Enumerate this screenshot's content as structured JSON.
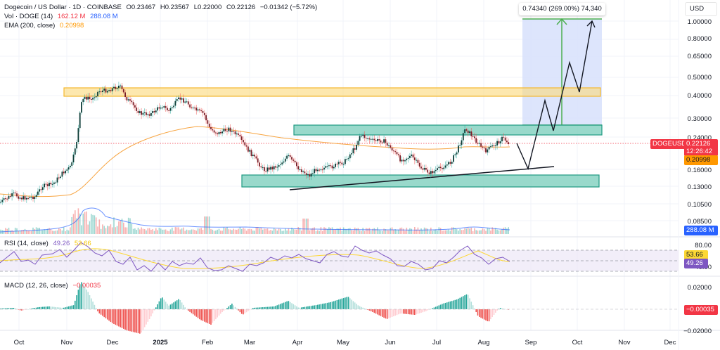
{
  "header": {
    "symbol_title": "Dogecoin / US Dollar · 1D · COINBASE",
    "open": "O0.23467",
    "high": "H0.23567",
    "low": "L0.22000",
    "close": "C0.22126",
    "change": "−0.01342 (−5.72%)",
    "vol_label": "Vol · DOGE (14)",
    "vol_value": "162.12 M",
    "vol_ma_value": "288.08 M",
    "ema_label": "EMA (200, close)",
    "ema_value": "0.20998"
  },
  "currency_button": "USD",
  "measure_tooltip": "0.74340 (269.00%) 74,340",
  "price_axis": [
    "1.00000",
    "0.80000",
    "0.65000",
    "0.50000",
    "0.40000",
    "0.30000",
    "0.24000",
    "0.16000",
    "0.13000",
    "0.10500",
    "0.08500"
  ],
  "price_tags": {
    "symbol": "DOGEUSD",
    "last_price": "0.22126",
    "countdown": "12:26:42",
    "ema": "0.20998",
    "volume_ma": "288.08 M"
  },
  "rsi": {
    "label": "RSI (14, close)",
    "value": "49.26",
    "ma_value": "53.66",
    "axis": [
      "80.00",
      "40.00"
    ],
    "tag_rsi": "49.26",
    "tag_ma": "53.66"
  },
  "macd": {
    "label": "MACD (12, 26, close)",
    "value": "−0.00035",
    "axis": [
      "0.02000",
      "−0.02000"
    ],
    "tag": "−0.00035"
  },
  "time_axis": [
    "Oct",
    "Nov",
    "Dec",
    "2025",
    "Feb",
    "Mar",
    "Apr",
    "May",
    "Jun",
    "Jul",
    "Aug",
    "Sep",
    "Oct",
    "Nov",
    "Dec"
  ],
  "colors": {
    "up": "#26a69a",
    "down": "#ef5350",
    "candle_up_body": "#0b3b36",
    "candle_down_body": "#7a1f28",
    "ema": "#f7a440",
    "volume_ma": "#2962ff",
    "rsi": "#7e57c2",
    "rsi_ma": "#fdd835",
    "price_tag": "#f23645",
    "ema_tag": "#ff9800",
    "resistance_zone": "#fbd87a",
    "support_zone": "#7fcfbe",
    "projection_box": "#d7e0fb",
    "projection_line": "#4caf50"
  },
  "chart_data": {
    "type": "candlestick",
    "title": "Dogecoin / US Dollar · 1D · COINBASE",
    "xlabel": "",
    "ylabel": "USD",
    "y_scale": "log",
    "ylim": [
      0.085,
      1.0
    ],
    "x": [
      "2024-10",
      "2024-11",
      "2024-12",
      "2025-01",
      "2025-02",
      "2025-03",
      "2025-04",
      "2025-05",
      "2025-06",
      "2025-07",
      "2025-08"
    ],
    "series": [
      {
        "name": "DOGEUSD approx monthly close",
        "values": [
          0.13,
          0.4,
          0.32,
          0.33,
          0.24,
          0.17,
          0.16,
          0.21,
          0.16,
          0.22,
          0.22
        ]
      },
      {
        "name": "EMA (200, close)",
        "values": [
          0.12,
          0.14,
          0.22,
          0.26,
          0.27,
          0.25,
          0.22,
          0.21,
          0.2,
          0.2,
          0.21
        ]
      }
    ],
    "last": {
      "open": 0.23467,
      "high": 0.23567,
      "low": 0.22,
      "close": 0.22126,
      "change": -0.01342,
      "change_pct": -5.72
    },
    "annotations": [
      {
        "type": "zone",
        "label": "resistance",
        "range": [
          0.4,
          0.44
        ]
      },
      {
        "type": "zone",
        "label": "mid-range resistance",
        "range": [
          0.25,
          0.28
        ]
      },
      {
        "type": "zone",
        "label": "support",
        "range": [
          0.13,
          0.15
        ]
      },
      {
        "type": "trendline",
        "label": "rising support",
        "from": [
          "2025-04",
          0.14
        ],
        "to": [
          "2025-09",
          0.17
        ]
      },
      {
        "type": "measure",
        "label": "0.74340 (269.00%) 74,340",
        "target": 1.0
      },
      {
        "type": "projection_path",
        "points": [
          0.21,
          0.16,
          0.34,
          0.27,
          0.58,
          0.41,
          1.0
        ]
      }
    ],
    "indicators": {
      "volume": {
        "last": "162.12M",
        "ma14": "288.08M"
      },
      "rsi": {
        "value": 49.26,
        "ma": 53.66,
        "bands": [
          30,
          50,
          70
        ]
      },
      "macd": {
        "histogram_last": -0.00035,
        "range": [
          -0.02,
          0.02
        ]
      }
    }
  }
}
